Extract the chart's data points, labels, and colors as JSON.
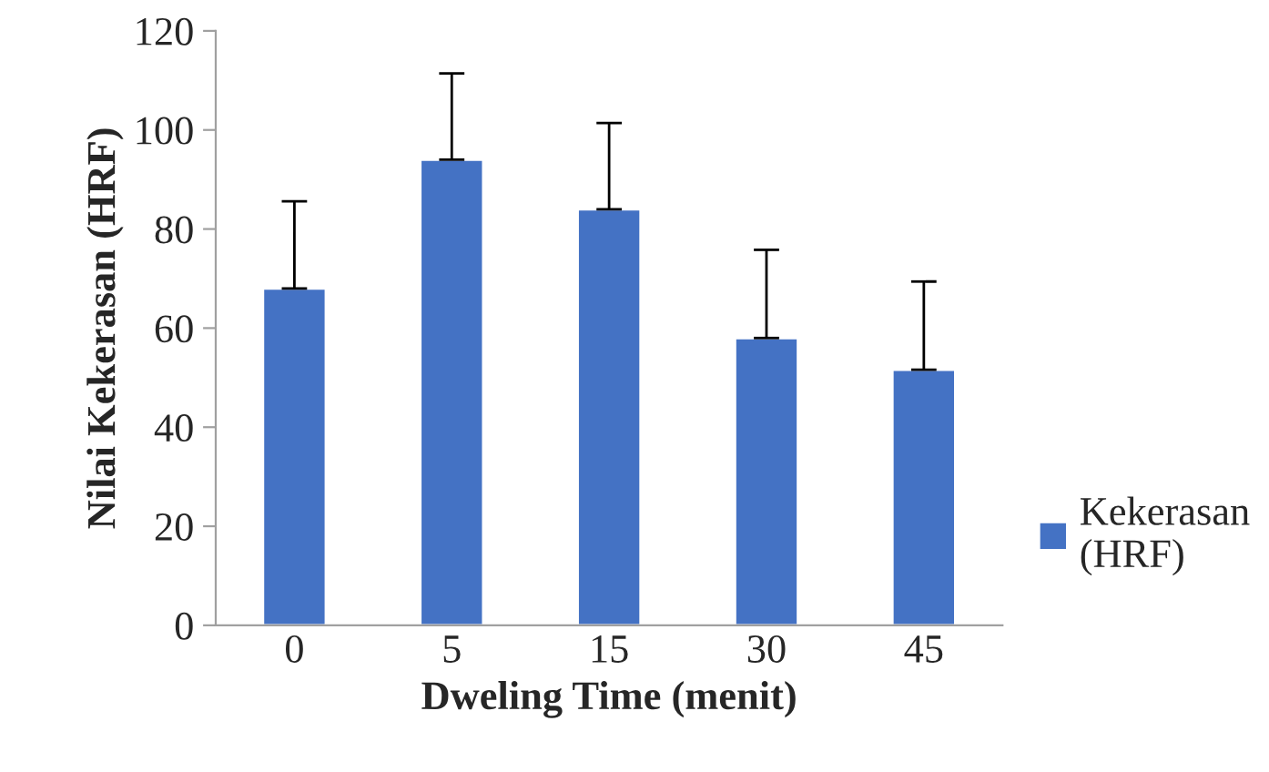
{
  "chart_data": {
    "type": "bar",
    "xlabel": "Dweling Time (menit)",
    "ylabel": "Nilai Kekerasan (HRF)",
    "categories": [
      "0",
      "5",
      "15",
      "30",
      "45"
    ],
    "series": [
      {
        "name": "Kekerasan\n(HRF)",
        "color": "#4472c4",
        "values": [
          68,
          94,
          84,
          58,
          51.6
        ],
        "errors": [
          [
            68,
            85.6
          ],
          [
            94,
            111.4
          ],
          [
            84,
            101.4
          ],
          [
            58,
            75.8
          ],
          [
            51.6,
            69.4
          ]
        ]
      }
    ],
    "ylim": [
      0,
      120
    ],
    "yticks": [
      0,
      20,
      40,
      60,
      80,
      100,
      120
    ],
    "grid": false,
    "legend": "right"
  }
}
